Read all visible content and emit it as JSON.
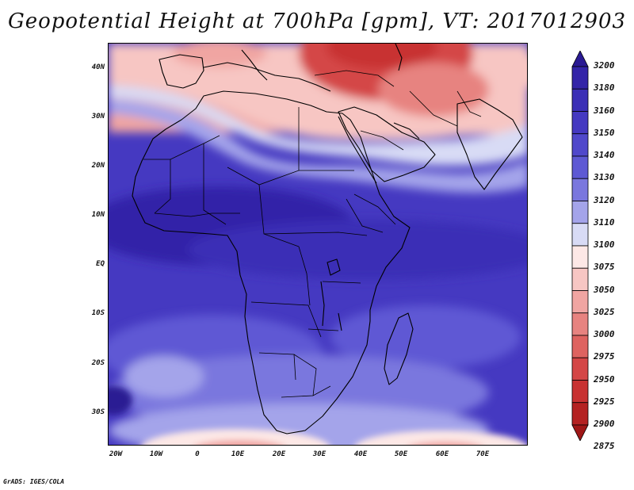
{
  "title": "Geopotential Height at 700hPa [gpm], VT: 2017012903",
  "footer": "GrADS: IGES/COLA",
  "map": {
    "lat_labels": [
      "40N",
      "30N",
      "20N",
      "10N",
      "EQ",
      "10S",
      "20S",
      "30S"
    ],
    "lon_labels": [
      "20W",
      "10W",
      "0",
      "10E",
      "20E",
      "30E",
      "40E",
      "50E",
      "60E",
      "70E"
    ]
  },
  "colorbar": {
    "levels": [
      "3200",
      "3180",
      "3160",
      "3150",
      "3140",
      "3130",
      "3120",
      "3110",
      "3100",
      "3075",
      "3050",
      "3025",
      "3000",
      "2975",
      "2950",
      "2925",
      "2900",
      "2875"
    ],
    "colors": [
      "#2a1a93",
      "#3324a8",
      "#3b2fb6",
      "#4539c1",
      "#5048cb",
      "#5e59d4",
      "#7a77de",
      "#a4a4ea",
      "#d8dbf5",
      "#fde8e6",
      "#f7c6c3",
      "#f0a5a2",
      "#e78380",
      "#de6360",
      "#d44646",
      "#c83232",
      "#b42222",
      "#9f1717"
    ]
  }
}
